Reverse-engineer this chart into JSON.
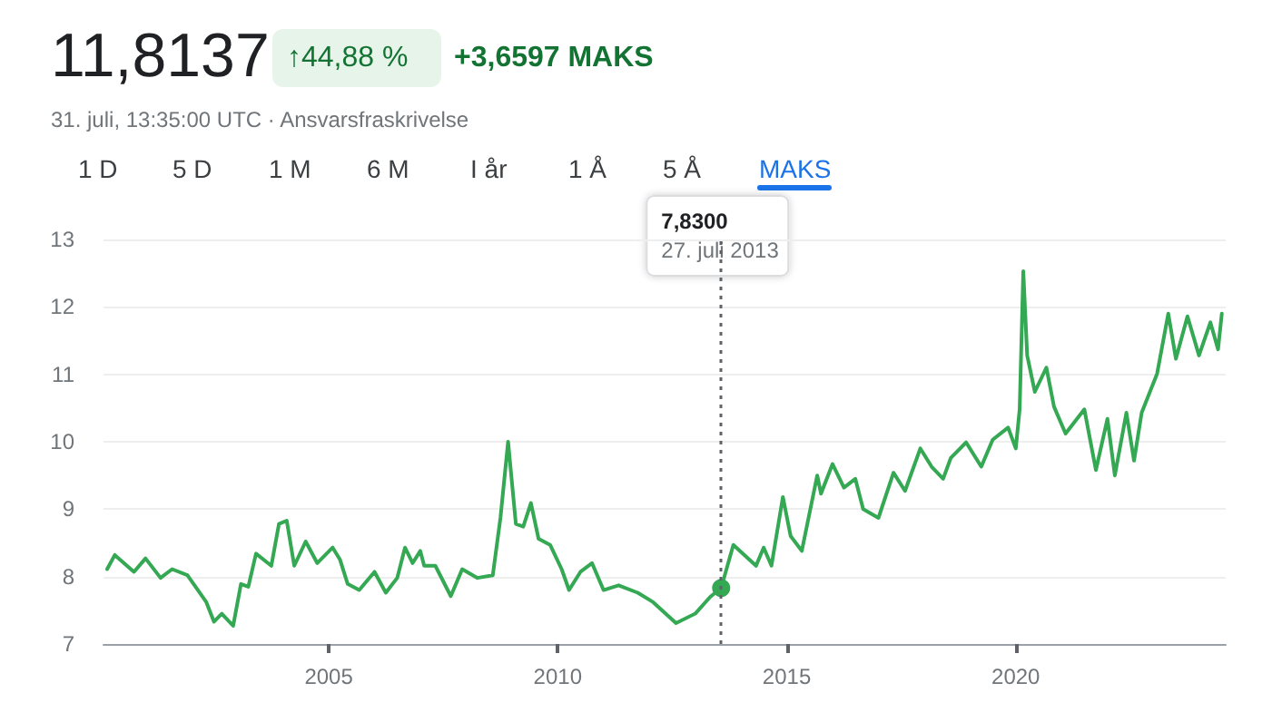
{
  "chart_data": {
    "type": "line",
    "title": "11,8137",
    "subtitle": "31. juli, 13:35:00 UTC · Ansvarsfraskrivelse",
    "annotations": [
      "↑44,88 %",
      "+3,6597 MAKS",
      "1 D",
      "5 D",
      "1 M",
      "6 M",
      "I år",
      "1 Å",
      "5 Å",
      "MAKS",
      "7,8300",
      "27. juli 2013"
    ],
    "x": [
      "2000-03",
      "2000-05",
      "2000-10",
      "2001-01",
      "2001-05",
      "2001-08",
      "2001-12",
      "2002-05",
      "2002-07",
      "2002-09",
      "2002-12",
      "2003-02",
      "2003-04",
      "2003-06",
      "2003-10",
      "2003-12",
      "2004-02",
      "2004-04",
      "2004-07",
      "2004-10",
      "2005-02",
      "2005-04",
      "2005-06",
      "2005-09",
      "2006-01",
      "2006-04",
      "2006-07",
      "2006-09",
      "2006-11",
      "2007-01",
      "2007-02",
      "2007-05",
      "2007-09",
      "2007-12",
      "2008-04",
      "2008-08",
      "2008-10",
      "2008-12",
      "2009-02",
      "2009-04",
      "2009-06",
      "2009-08",
      "2009-11",
      "2010-02",
      "2010-04",
      "2010-07",
      "2010-10",
      "2011-01",
      "2011-05",
      "2011-10",
      "2012-02",
      "2012-08",
      "2013-01",
      "2013-05",
      "2013-07-27",
      "2013-11",
      "2014-05",
      "2014-07",
      "2014-09",
      "2014-12",
      "2015-02",
      "2015-05",
      "2015-09",
      "2015-10",
      "2016-01",
      "2016-04",
      "2016-07",
      "2016-09",
      "2017-01",
      "2017-05",
      "2017-08",
      "2017-12",
      "2018-03",
      "2018-06",
      "2018-08",
      "2018-12",
      "2019-04",
      "2019-07",
      "2019-11",
      "2020-01",
      "2020-02",
      "2020-03",
      "2020-04",
      "2020-06",
      "2020-09",
      "2020-11",
      "2021-02",
      "2021-07",
      "2021-10",
      "2022-01",
      "2022-03",
      "2022-06",
      "2022-08",
      "2022-10",
      "2023-02",
      "2023-05",
      "2023-07",
      "2023-10",
      "2024-01",
      "2024-04",
      "2024-06",
      "2024-07"
    ],
    "series": [
      {
        "color": "#34a853",
        "values": [
          8.11,
          8.32,
          8.07,
          8.27,
          7.98,
          8.11,
          8.02,
          7.62,
          7.33,
          7.45,
          7.27,
          7.89,
          7.85,
          8.34,
          8.16,
          8.78,
          8.83,
          8.16,
          8.52,
          8.2,
          8.43,
          8.25,
          7.89,
          7.8,
          8.07,
          7.76,
          7.98,
          8.43,
          8.2,
          8.38,
          8.16,
          8.16,
          7.71,
          8.11,
          7.98,
          8.02,
          8.87,
          10.0,
          8.78,
          8.74,
          9.09,
          8.56,
          8.47,
          8.11,
          7.8,
          8.07,
          8.2,
          7.8,
          7.87,
          7.76,
          7.62,
          7.31,
          7.45,
          7.7,
          7.83,
          8.47,
          8.16,
          8.43,
          8.16,
          9.18,
          8.6,
          8.38,
          9.5,
          9.23,
          9.67,
          9.32,
          9.45,
          9.0,
          8.87,
          9.54,
          9.27,
          9.9,
          9.63,
          9.45,
          9.76,
          9.99,
          9.63,
          10.03,
          10.21,
          9.9,
          10.48,
          12.53,
          11.28,
          10.74,
          11.1,
          10.52,
          10.12,
          10.48,
          9.58,
          10.34,
          9.5,
          10.43,
          9.72,
          10.43,
          11.01,
          11.9,
          11.23,
          11.86,
          11.28,
          11.77,
          11.37,
          11.9
        ]
      }
    ],
    "xlim": [
      "2000-02",
      "2024-08"
    ],
    "xticks": [
      "2005",
      "2010",
      "2015",
      "2020"
    ],
    "ylim": [
      7,
      13
    ],
    "yticks": [
      7,
      8,
      9,
      10,
      11,
      12,
      13
    ],
    "grid": "y",
    "marker": "none",
    "line_style": "solid",
    "ref_lines": [
      {
        "axis": "x",
        "value": "2013-07-27",
        "color": "#5f6368",
        "line_style": "dotted"
      }
    ]
  }
}
